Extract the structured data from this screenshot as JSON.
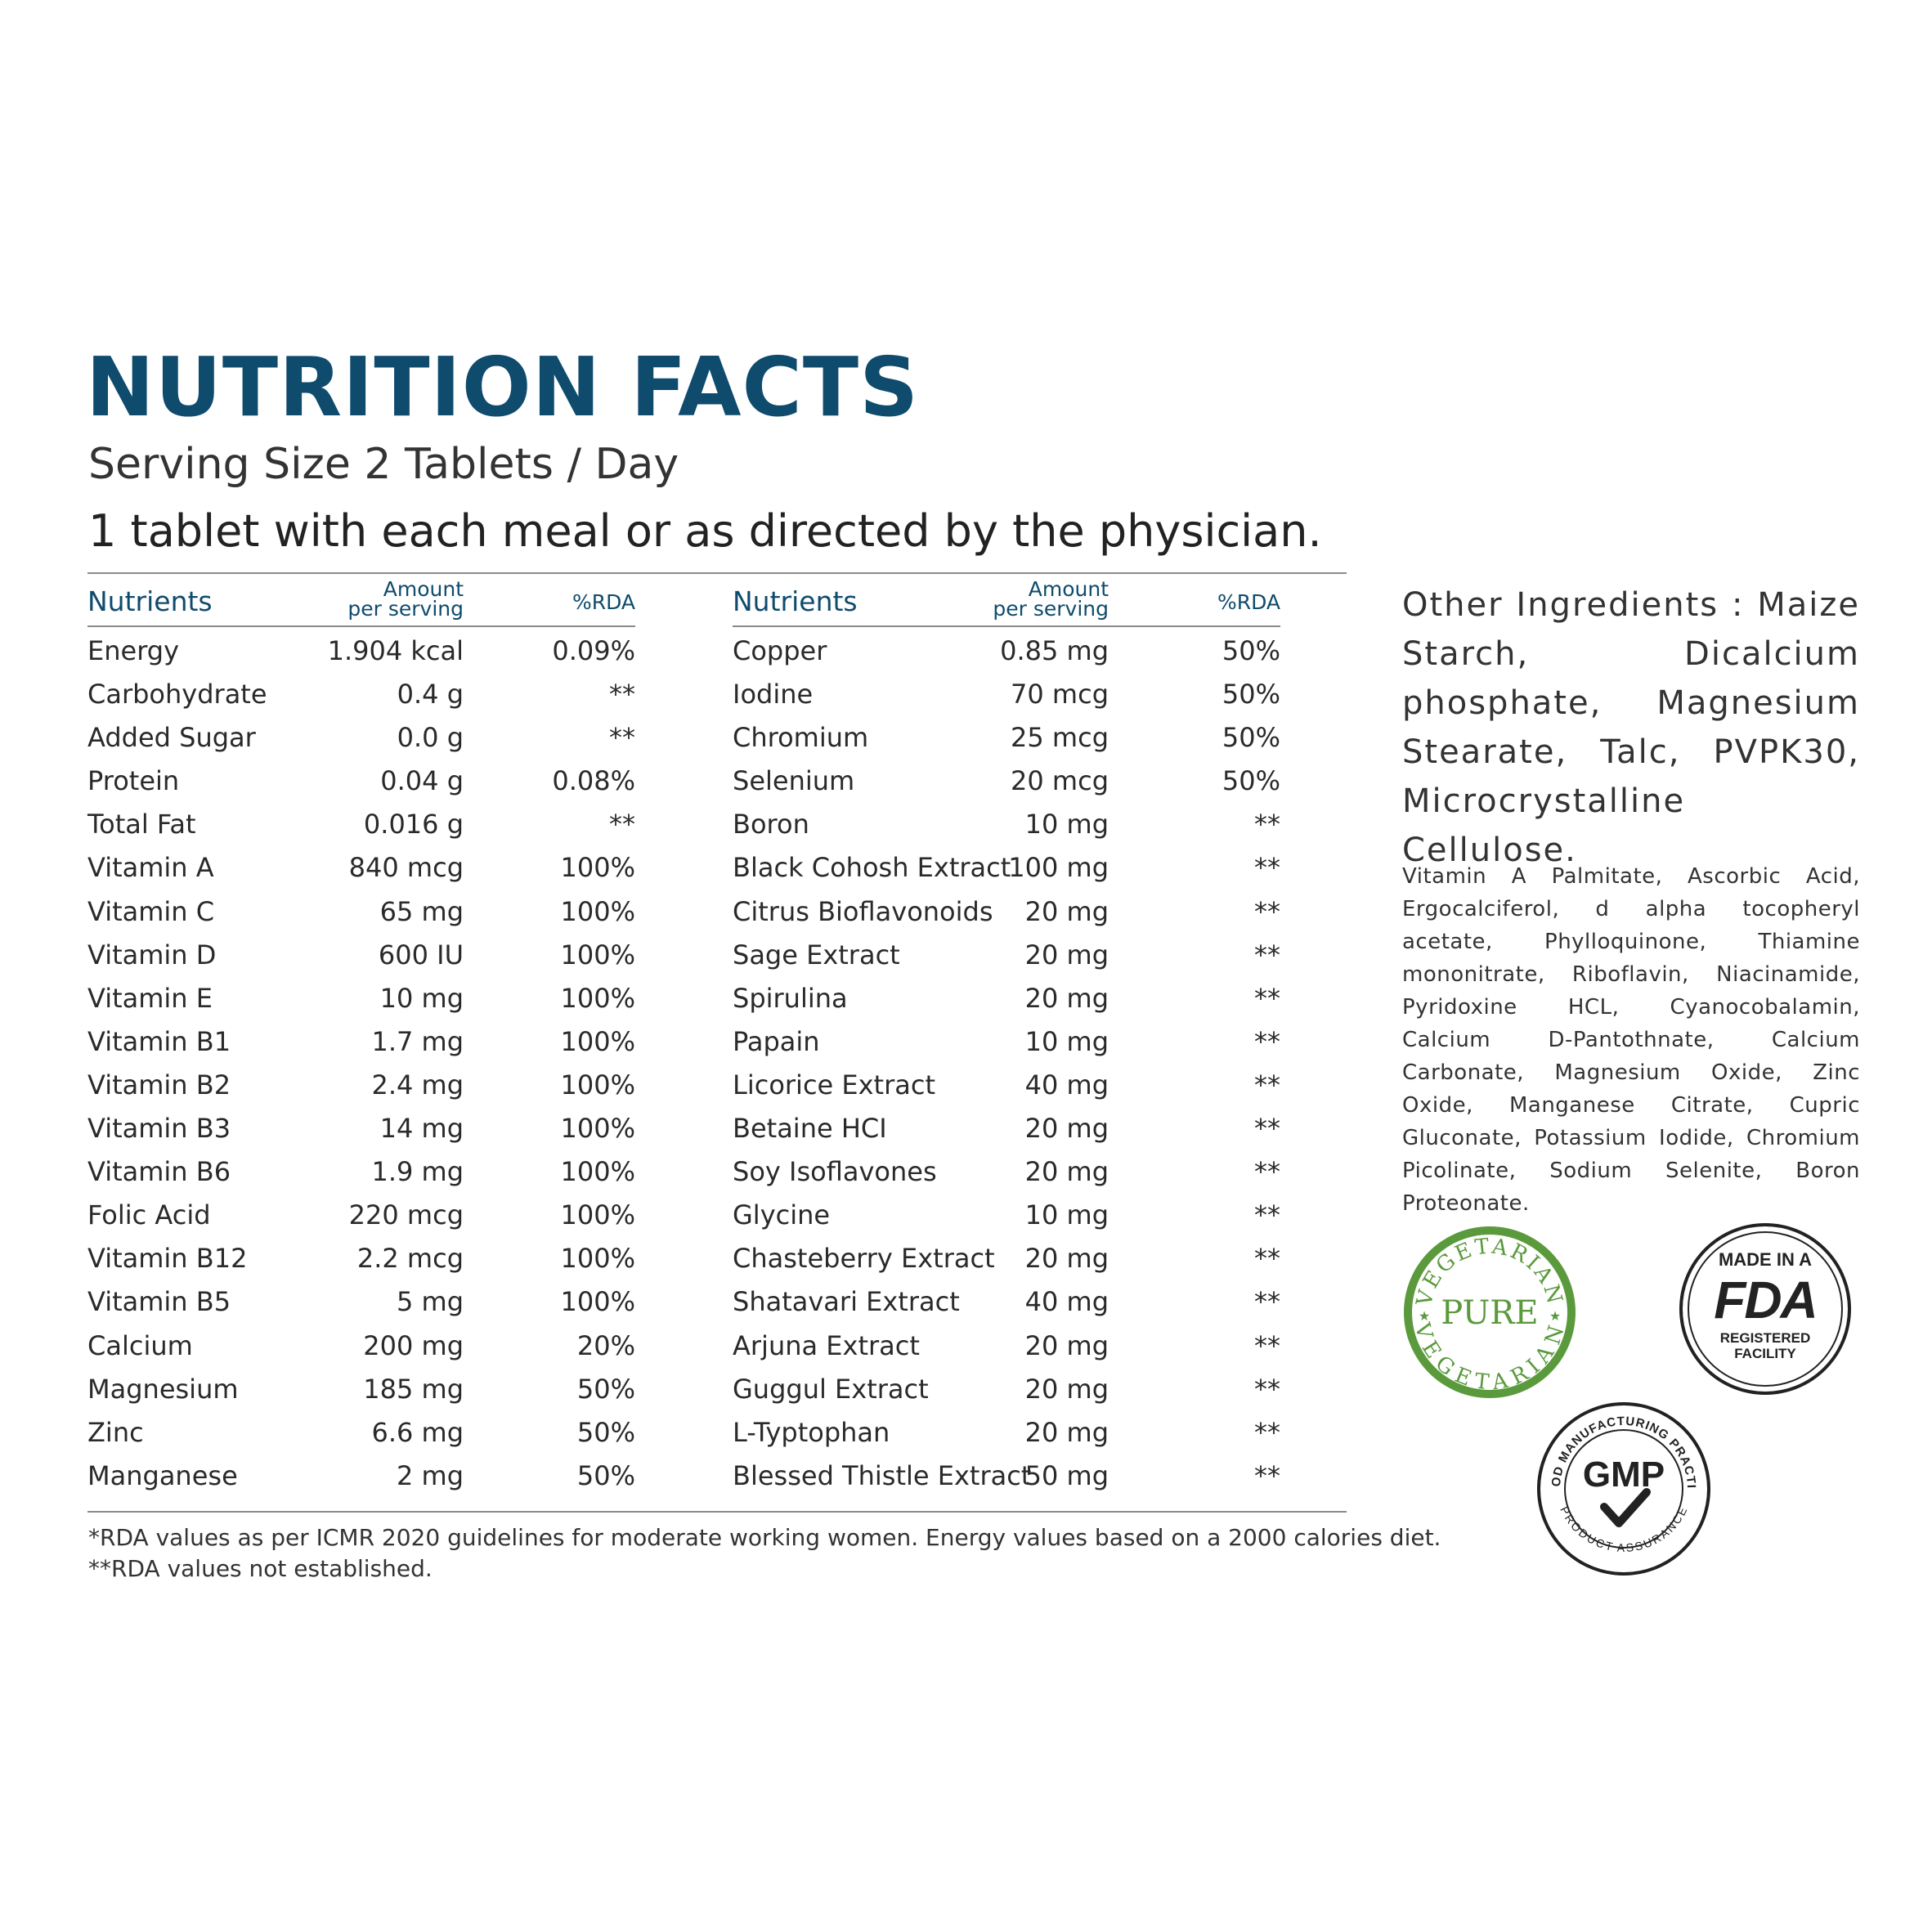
{
  "header": {
    "title": "NUTRITION FACTS",
    "serving": "Serving Size 2 Tablets / Day",
    "directions": "1 tablet with each meal or as directed by the physician."
  },
  "columns": {
    "nutrients": "Nutrients",
    "amount_line1": "Amount",
    "amount_line2": "per serving",
    "rda": "%RDA"
  },
  "left_rows": [
    {
      "name": "Energy",
      "amount": "1.904 kcal",
      "rda": "0.09%"
    },
    {
      "name": "Carbohydrate",
      "amount": "0.4 g",
      "rda": "**"
    },
    {
      "name": "Added Sugar",
      "amount": "0.0 g",
      "rda": "**"
    },
    {
      "name": "Protein",
      "amount": "0.04 g",
      "rda": "0.08%"
    },
    {
      "name": "Total Fat",
      "amount": "0.016 g",
      "rda": "**"
    },
    {
      "name": "Vitamin A",
      "amount": "840 mcg",
      "rda": "100%"
    },
    {
      "name": "Vitamin C",
      "amount": "65 mg",
      "rda": "100%"
    },
    {
      "name": "Vitamin D",
      "amount": "600 IU",
      "rda": "100%"
    },
    {
      "name": "Vitamin E",
      "amount": "10 mg",
      "rda": "100%"
    },
    {
      "name": "Vitamin B1",
      "amount": "1.7 mg",
      "rda": "100%"
    },
    {
      "name": "Vitamin B2",
      "amount": "2.4 mg",
      "rda": "100%"
    },
    {
      "name": "Vitamin B3",
      "amount": "14 mg",
      "rda": "100%"
    },
    {
      "name": "Vitamin B6",
      "amount": "1.9 mg",
      "rda": "100%"
    },
    {
      "name": "Folic Acid",
      "amount": "220 mcg",
      "rda": "100%"
    },
    {
      "name": "Vitamin B12",
      "amount": "2.2 mcg",
      "rda": "100%"
    },
    {
      "name": "Vitamin B5",
      "amount": "5 mg",
      "rda": "100%"
    },
    {
      "name": "Calcium",
      "amount": "200 mg",
      "rda": "20%"
    },
    {
      "name": "Magnesium",
      "amount": "185 mg",
      "rda": "50%"
    },
    {
      "name": "Zinc",
      "amount": "6.6 mg",
      "rda": "50%"
    },
    {
      "name": "Manganese",
      "amount": "2 mg",
      "rda": "50%"
    }
  ],
  "right_rows": [
    {
      "name": "Copper",
      "amount": "0.85 mg",
      "rda": "50%"
    },
    {
      "name": "Iodine",
      "amount": "70 mcg",
      "rda": "50%"
    },
    {
      "name": "Chromium",
      "amount": "25 mcg",
      "rda": "50%"
    },
    {
      "name": "Selenium",
      "amount": "20 mcg",
      "rda": "50%"
    },
    {
      "name": "Boron",
      "amount": "10 mg",
      "rda": "**"
    },
    {
      "name": "Black Cohosh Extract",
      "amount": "100 mg",
      "rda": "**"
    },
    {
      "name": "Citrus Bioflavonoids",
      "amount": "20 mg",
      "rda": "**"
    },
    {
      "name": "Sage Extract",
      "amount": "20 mg",
      "rda": "**"
    },
    {
      "name": "Spirulina",
      "amount": "20 mg",
      "rda": "**"
    },
    {
      "name": "Papain",
      "amount": "10 mg",
      "rda": "**"
    },
    {
      "name": "Licorice Extract",
      "amount": "40 mg",
      "rda": "**"
    },
    {
      "name": "Betaine HCI",
      "amount": "20 mg",
      "rda": "**"
    },
    {
      "name": "Soy Isoflavones",
      "amount": "20 mg",
      "rda": "**"
    },
    {
      "name": "Glycine",
      "amount": "10 mg",
      "rda": "**"
    },
    {
      "name": "Chasteberry Extract",
      "amount": "20 mg",
      "rda": "**"
    },
    {
      "name": "Shatavari Extract",
      "amount": "40 mg",
      "rda": "**"
    },
    {
      "name": "Arjuna Extract",
      "amount": "20 mg",
      "rda": "**"
    },
    {
      "name": "Guggul Extract",
      "amount": "20 mg",
      "rda": "**"
    },
    {
      "name": "L-Typtophan",
      "amount": "20 mg",
      "rda": "**"
    },
    {
      "name": "Blessed Thistle Extract",
      "amount": "50 mg",
      "rda": "**"
    }
  ],
  "footnotes": {
    "line1": "*RDA values as per ICMR 2020 guidelines for moderate working women. Energy values based on a 2000 calories diet.",
    "line2": "**RDA values not established."
  },
  "other_ingredients": "Other Ingredients : Maize Starch, Dicalcium phosphate, Magnesium Stearate, Talc, PVPK30, Microcrystalline Cellulose.",
  "ingredients_list": "Vitamin A Palmitate, Ascorbic Acid, Ergocalciferol, d alpha tocopheryl acetate, Phylloquinone, Thiamine mononitrate, Riboflavin, Niacinamide, Pyridoxine HCL, Cyanocobalamin, Calcium D-Pantothnate, Calcium Carbonate, Magnesium Oxide, Zinc Oxide, Manganese Citrate, Cupric Gluconate, Potassium Iodide, Chromium Picolinate, Sodium Selenite, Boron Proteonate.",
  "badges": {
    "vegetarian": {
      "arc_top": "VEGETARIAN",
      "center": "PURE",
      "arc_bottom": "VEGETARIAN",
      "color": "#5a9a3c",
      "icon": "vegetarian-pure-badge"
    },
    "fda": {
      "top": "MADE IN A",
      "mark": "FDA",
      "bottom1": "REGISTERED",
      "bottom2": "FACILITY",
      "color": "#222222",
      "icon": "fda-badge"
    },
    "gmp": {
      "arc_top": "GOOD MANUFACTURING PRACTICE",
      "center": "GMP",
      "arc_bottom": "PRODUCT ASSURANCE",
      "color": "#222222",
      "icon": "gmp-badge"
    }
  },
  "colors": {
    "title": "#0f4b6d",
    "header_text": "#0f4b6d",
    "rule": "#8a8a8a",
    "body_text": "#2a2a2a"
  }
}
